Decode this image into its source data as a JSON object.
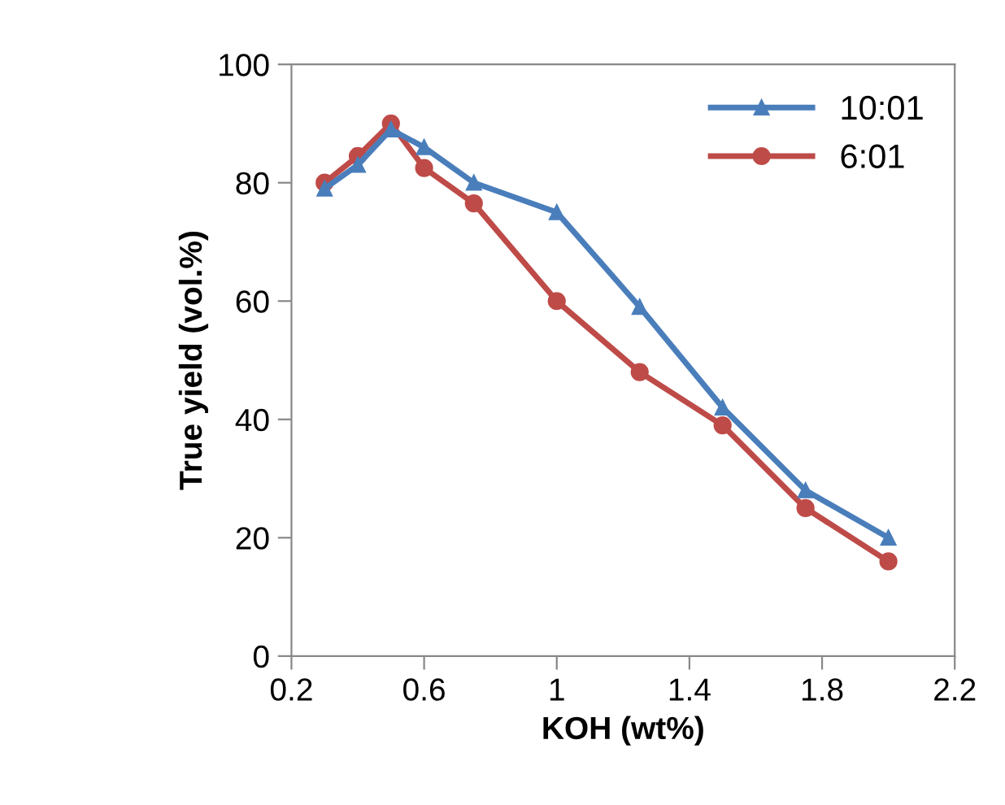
{
  "chart_data": {
    "type": "line",
    "xlabel": "KOH (wt%)",
    "ylabel": "True yield (vol.%)",
    "xlim": [
      0.2,
      2.2
    ],
    "xticks": [
      0.2,
      0.6,
      1,
      1.4,
      1.8,
      2.2
    ],
    "ylim": [
      0,
      100
    ],
    "yticks": [
      0,
      20,
      40,
      60,
      80,
      100
    ],
    "x": [
      0.3,
      0.4,
      0.5,
      0.6,
      0.75,
      1,
      1.25,
      1.5,
      1.75,
      2
    ],
    "series": [
      {
        "name": "10:01",
        "color": "#4a7ebb",
        "marker": "triangle",
        "values": [
          79,
          83,
          89,
          86,
          80,
          75,
          59,
          42,
          28,
          20
        ]
      },
      {
        "name": "6:01",
        "color": "#be4b48",
        "marker": "circle",
        "values": [
          80,
          84.5,
          90,
          82.5,
          76.5,
          60,
          48,
          39,
          25,
          16
        ]
      }
    ],
    "legend": "top right",
    "grid": false,
    "line_style": "solid"
  }
}
